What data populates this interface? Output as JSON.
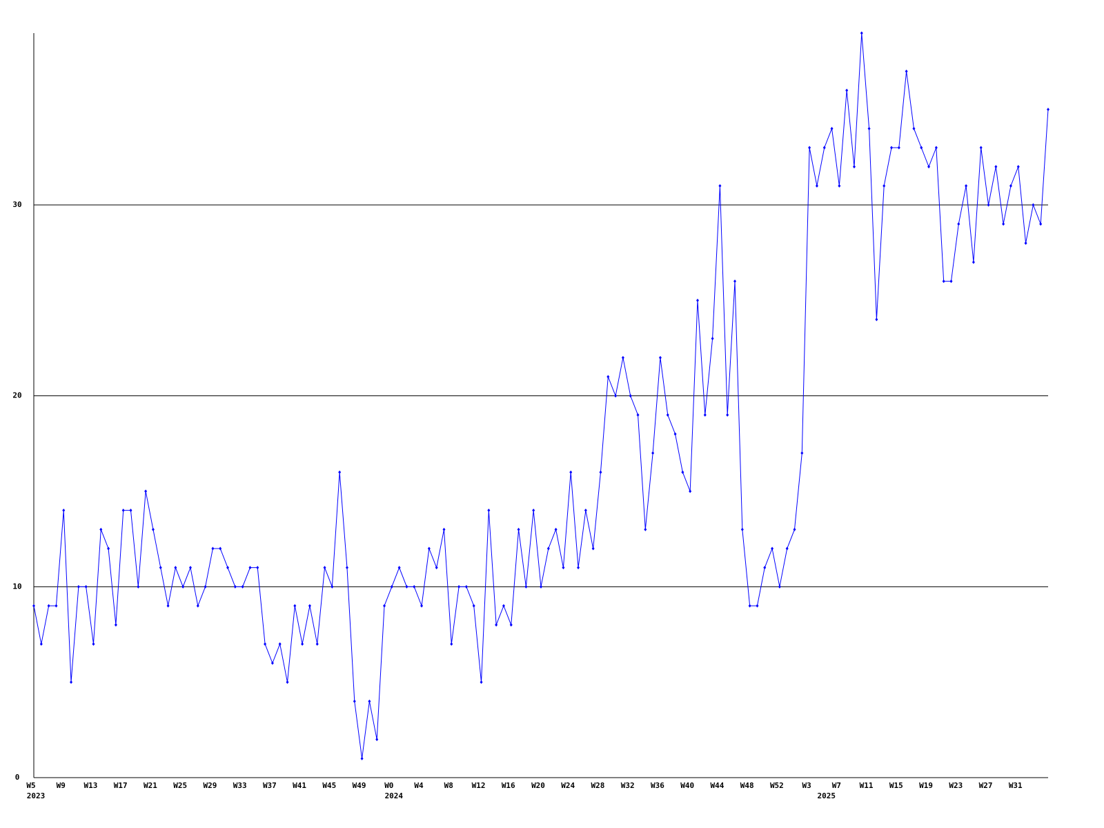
{
  "chart_data": {
    "type": "line",
    "categories": [
      "W5",
      null,
      null,
      null,
      "W9",
      null,
      null,
      null,
      "W13",
      null,
      null,
      null,
      "W17",
      null,
      null,
      null,
      "W21",
      null,
      null,
      null,
      "W25",
      null,
      null,
      null,
      "W29",
      null,
      null,
      null,
      "W33",
      null,
      null,
      null,
      "W37",
      null,
      null,
      null,
      "W41",
      null,
      null,
      null,
      "W45",
      null,
      null,
      null,
      "W49",
      null,
      null,
      null,
      "W0",
      null,
      null,
      null,
      "W4",
      null,
      null,
      null,
      "W8",
      null,
      null,
      null,
      "W12",
      null,
      null,
      null,
      "W16",
      null,
      null,
      null,
      "W20",
      null,
      null,
      null,
      "W24",
      null,
      null,
      null,
      "W28",
      null,
      null,
      null,
      "W32",
      null,
      null,
      null,
      "W36",
      null,
      null,
      null,
      "W40",
      null,
      null,
      null,
      "W44",
      null,
      null,
      null,
      "W48",
      null,
      null,
      null,
      "W52",
      null,
      null,
      null,
      "W3",
      null,
      null,
      null,
      "W7",
      null,
      null,
      null,
      "W11",
      null,
      null,
      null,
      "W15",
      null,
      null,
      null,
      "W19",
      null,
      null,
      null,
      "W23",
      null,
      null,
      null,
      "W27",
      null,
      null,
      null,
      "W31",
      null,
      null,
      null,
      null
    ],
    "year_labels": [
      "2023",
      null,
      null,
      null,
      null,
      null,
      null,
      null,
      null,
      null,
      null,
      null,
      null,
      null,
      null,
      null,
      null,
      null,
      null,
      null,
      null,
      null,
      null,
      null,
      null,
      null,
      null,
      null,
      null,
      null,
      null,
      null,
      null,
      null,
      null,
      null,
      null,
      null,
      null,
      null,
      null,
      null,
      null,
      null,
      null,
      null,
      null,
      null,
      "2024",
      null,
      null,
      null,
      null,
      null,
      null,
      null,
      null,
      null,
      null,
      null,
      null,
      null,
      null,
      null,
      null,
      null,
      null,
      null,
      null,
      null,
      null,
      null,
      null,
      null,
      null,
      null,
      null,
      null,
      null,
      null,
      null,
      null,
      null,
      null,
      null,
      null,
      null,
      null,
      null,
      null,
      null,
      null,
      null,
      null,
      null,
      null,
      null,
      null,
      null,
      null,
      null,
      null,
      null,
      null,
      null,
      null,
      "2025",
      null,
      null,
      null,
      null,
      null,
      null,
      null,
      null,
      null,
      null,
      null,
      null,
      null,
      null,
      null,
      null,
      null,
      null,
      null,
      null,
      null,
      null,
      null,
      null,
      null,
      null,
      null,
      null,
      null,
      null,
      null
    ],
    "series": [
      {
        "color": "#0000ff",
        "values": [
          9,
          7,
          9,
          9,
          14,
          5,
          10,
          10,
          7,
          13,
          12,
          8,
          14,
          14,
          10,
          15,
          13,
          11,
          9,
          11,
          10,
          11,
          9,
          10,
          12,
          12,
          11,
          10,
          10,
          11,
          11,
          7,
          6,
          7,
          5,
          9,
          7,
          9,
          7,
          11,
          10,
          16,
          11,
          4,
          1,
          4,
          2,
          9,
          10,
          11,
          10,
          10,
          9,
          12,
          11,
          13,
          7,
          10,
          10,
          9,
          5,
          14,
          8,
          9,
          8,
          13,
          10,
          14,
          10,
          12,
          13,
          11,
          16,
          11,
          14,
          12,
          16,
          21,
          20,
          22,
          20,
          19,
          13,
          17,
          22,
          19,
          18,
          16,
          15,
          25,
          19,
          23,
          31,
          19,
          26,
          13,
          9,
          9,
          11,
          12,
          10,
          12,
          13,
          17,
          33,
          31,
          33,
          34,
          31,
          36,
          32,
          39,
          34,
          24,
          31,
          33,
          33,
          37,
          34,
          33,
          32,
          33,
          26,
          26,
          29,
          31,
          27,
          33,
          30,
          32,
          29,
          31,
          32,
          28,
          30,
          29,
          35
        ]
      }
    ],
    "ylim": [
      0,
      39
    ],
    "yticks": [
      0,
      10,
      20,
      30
    ],
    "grid": true
  }
}
